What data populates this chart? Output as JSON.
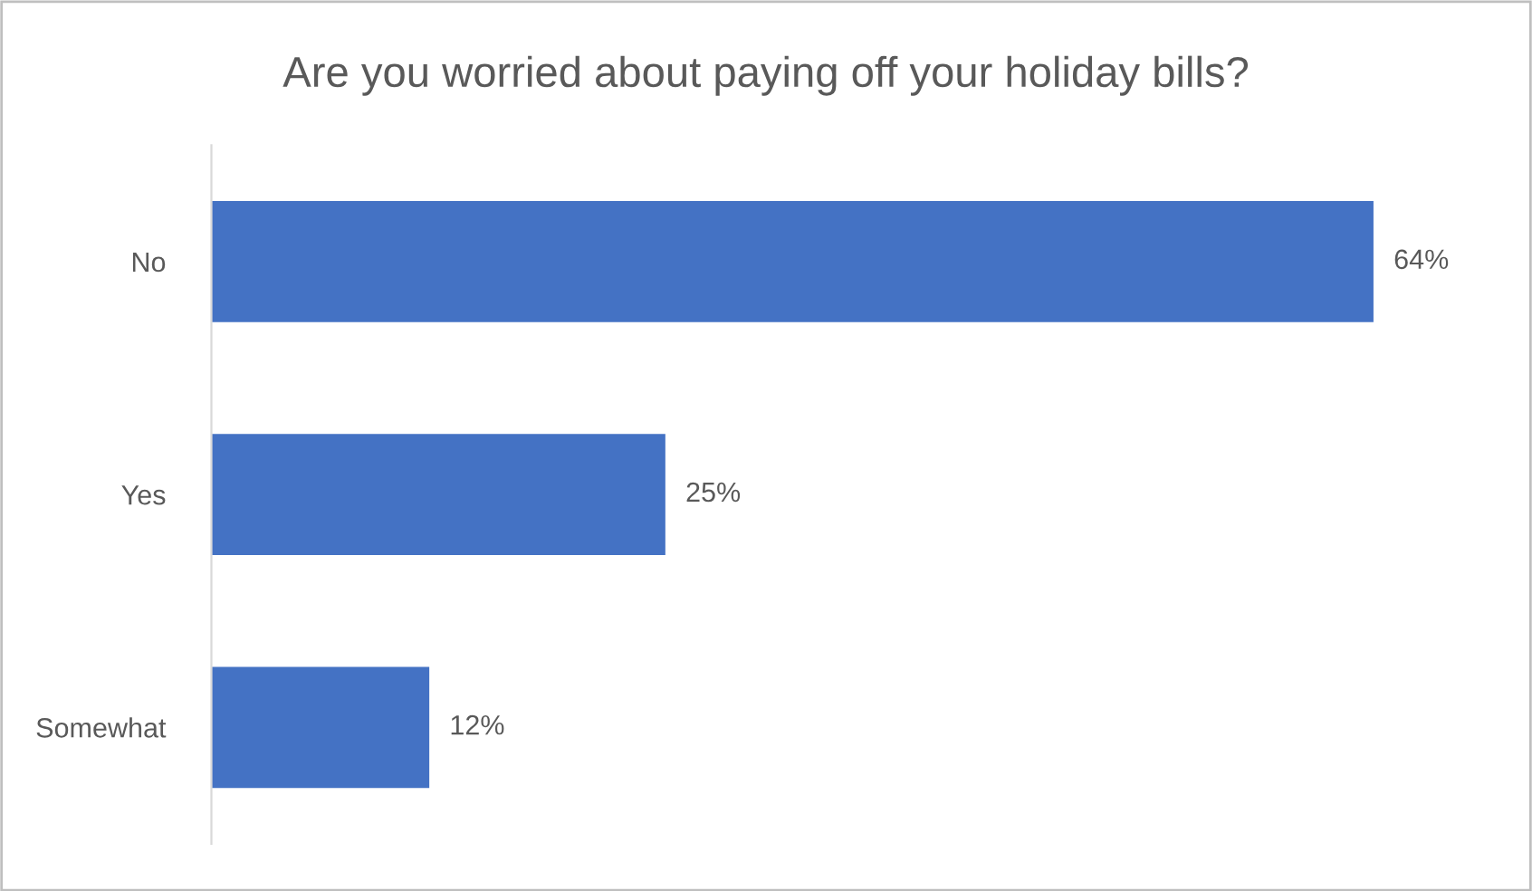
{
  "chart_data": {
    "type": "bar",
    "orientation": "horizontal",
    "title": "Are you worried about paying off your holiday bills?",
    "categories": [
      "No",
      "Yes",
      "Somewhat"
    ],
    "values": [
      64,
      25,
      12
    ],
    "color": "#4472c4",
    "value_labels": [
      "64%",
      "25%",
      "12%"
    ],
    "grid": false,
    "legend": false
  }
}
